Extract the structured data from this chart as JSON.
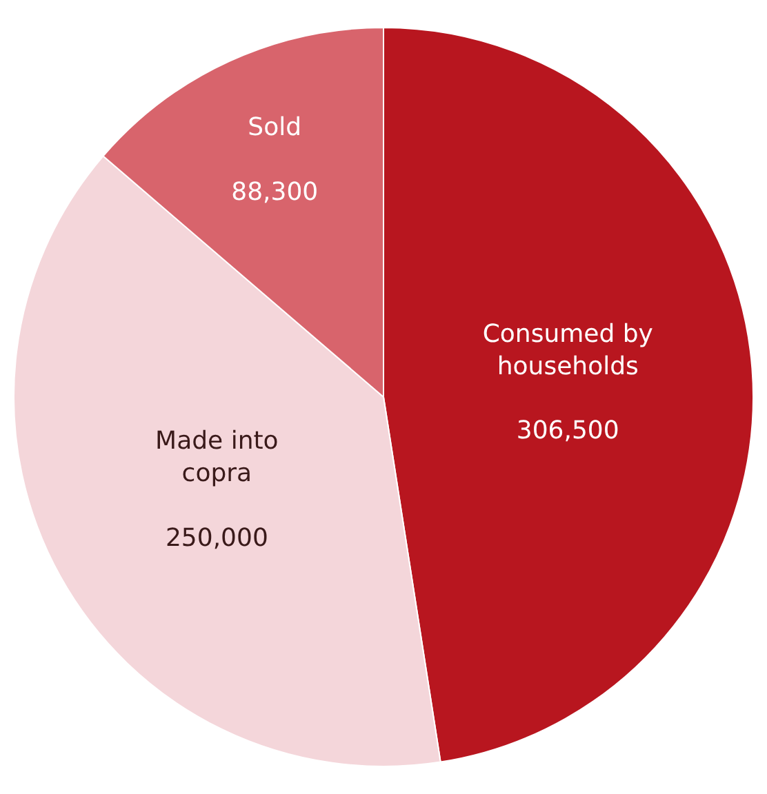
{
  "chart_data": {
    "type": "pie",
    "categories": [
      "Consumed by households",
      "Made into copra",
      "Sold"
    ],
    "values": [
      306500,
      250000,
      88300
    ],
    "value_labels": [
      "306,500",
      "250,000",
      "88,300"
    ],
    "colors": [
      "#b8161f",
      "#f4d6da",
      "#d8646c"
    ],
    "legend": false
  }
}
